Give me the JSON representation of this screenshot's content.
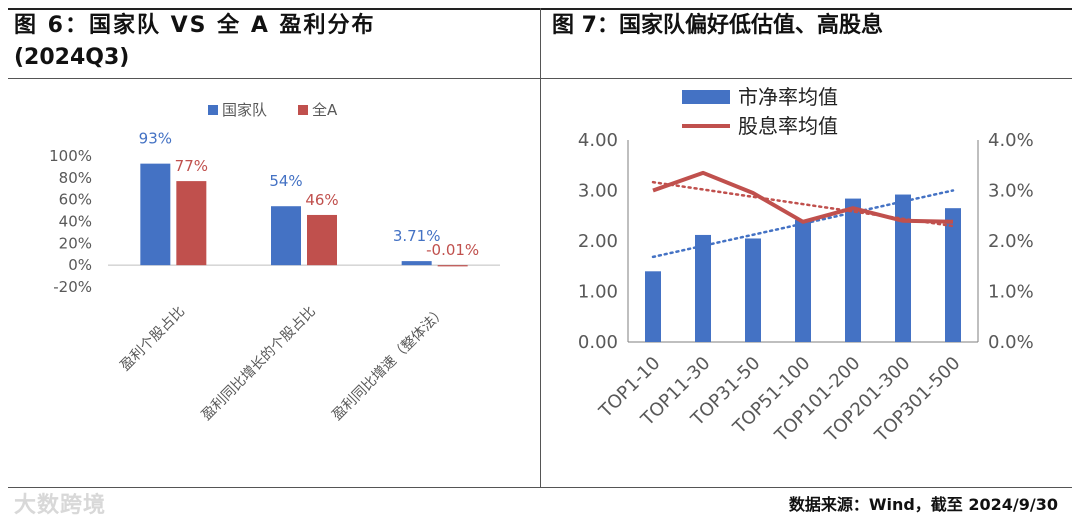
{
  "left": {
    "title": "图 6：国家队 VS 全 A 盈利分布",
    "title2": "(2024Q3)"
  },
  "right": {
    "title": "图 7：国家队偏好低估值、高股息"
  },
  "source": "数据来源：Wind，截至 2024/9/30",
  "watermark": "大数跨境",
  "colors": {
    "blue": "#4472C4",
    "red": "#C0504D",
    "text": "#595959"
  },
  "chart_data": [
    {
      "type": "bar",
      "categories": [
        "盈利个股占比",
        "盈利同比增长的个股占比",
        "盈利同比增速（整体法）"
      ],
      "series": [
        {
          "name": "国家队",
          "values": [
            93,
            54,
            3.71
          ],
          "labels": [
            "93%",
            "54%",
            "3.71%"
          ]
        },
        {
          "name": "全A",
          "values": [
            77,
            46,
            -0.01
          ],
          "labels": [
            "77%",
            "46%",
            "-0.01%"
          ]
        }
      ],
      "ylim": [
        -20,
        100
      ],
      "yticks": [
        "-20%",
        "0%",
        "20%",
        "40%",
        "60%",
        "80%",
        "100%"
      ],
      "legend": "top"
    },
    {
      "type": "bar",
      "categories": [
        "TOP1-10",
        "TOP11-30",
        "TOP31-50",
        "TOP51-100",
        "TOP101-200",
        "TOP201-300",
        "TOP301-500"
      ],
      "series": [
        {
          "name": "市净率均值",
          "type": "bar",
          "axis": "left",
          "values": [
            1.4,
            2.12,
            2.05,
            2.42,
            2.84,
            2.92,
            2.65
          ]
        },
        {
          "name": "股息率均值",
          "type": "line",
          "axis": "right",
          "values": [
            3.0,
            3.35,
            2.95,
            2.38,
            2.65,
            2.4,
            2.38
          ]
        }
      ],
      "y_left": {
        "lim": [
          0,
          4
        ],
        "ticks": [
          "0.00",
          "1.00",
          "2.00",
          "3.00",
          "4.00"
        ]
      },
      "y_right": {
        "lim": [
          0,
          4
        ],
        "ticks": [
          "0.0%",
          "1.0%",
          "2.0%",
          "3.0%",
          "4.0%"
        ]
      },
      "trendlines": "dotted, both series",
      "legend": "top-left"
    }
  ]
}
